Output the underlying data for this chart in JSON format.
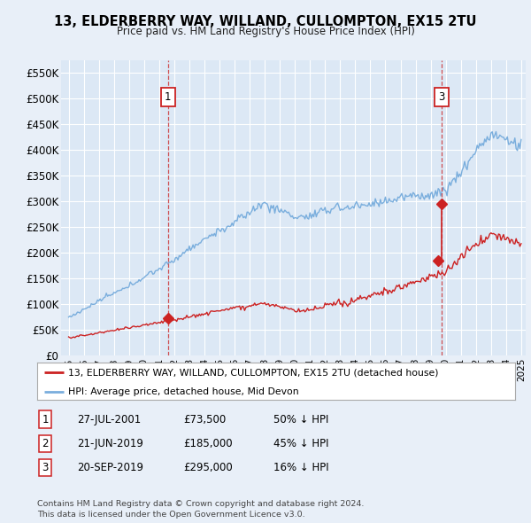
{
  "title": "13, ELDERBERRY WAY, WILLAND, CULLOMPTON, EX15 2TU",
  "subtitle": "Price paid vs. HM Land Registry's House Price Index (HPI)",
  "background_color": "#e8eff8",
  "plot_bg_color": "#dce8f5",
  "hpi_color": "#7aaedd",
  "price_color": "#cc2222",
  "vline_color": "#cc3333",
  "ylim": [
    0,
    575000
  ],
  "yticks": [
    0,
    50000,
    100000,
    150000,
    200000,
    250000,
    300000,
    350000,
    400000,
    450000,
    500000,
    550000
  ],
  "sales": [
    {
      "date_num": 2001.58,
      "price": 73500,
      "label": "1"
    },
    {
      "date_num": 2019.47,
      "price": 185000,
      "label": "2"
    },
    {
      "date_num": 2019.72,
      "price": 295000,
      "label": "3"
    }
  ],
  "legend_property_label": "13, ELDERBERRY WAY, WILLAND, CULLOMPTON, EX15 2TU (detached house)",
  "legend_hpi_label": "HPI: Average price, detached house, Mid Devon",
  "table_entries": [
    {
      "num": "1",
      "date": "27-JUL-2001",
      "price": "£73,500",
      "note": "50% ↓ HPI"
    },
    {
      "num": "2",
      "date": "21-JUN-2019",
      "price": "£185,000",
      "note": "45% ↓ HPI"
    },
    {
      "num": "3",
      "date": "20-SEP-2019",
      "price": "£295,000",
      "note": "16% ↓ HPI"
    }
  ],
  "footer": "Contains HM Land Registry data © Crown copyright and database right 2024.\nThis data is licensed under the Open Government Licence v3.0.",
  "xmin": 1994.5,
  "xmax": 2025.3
}
